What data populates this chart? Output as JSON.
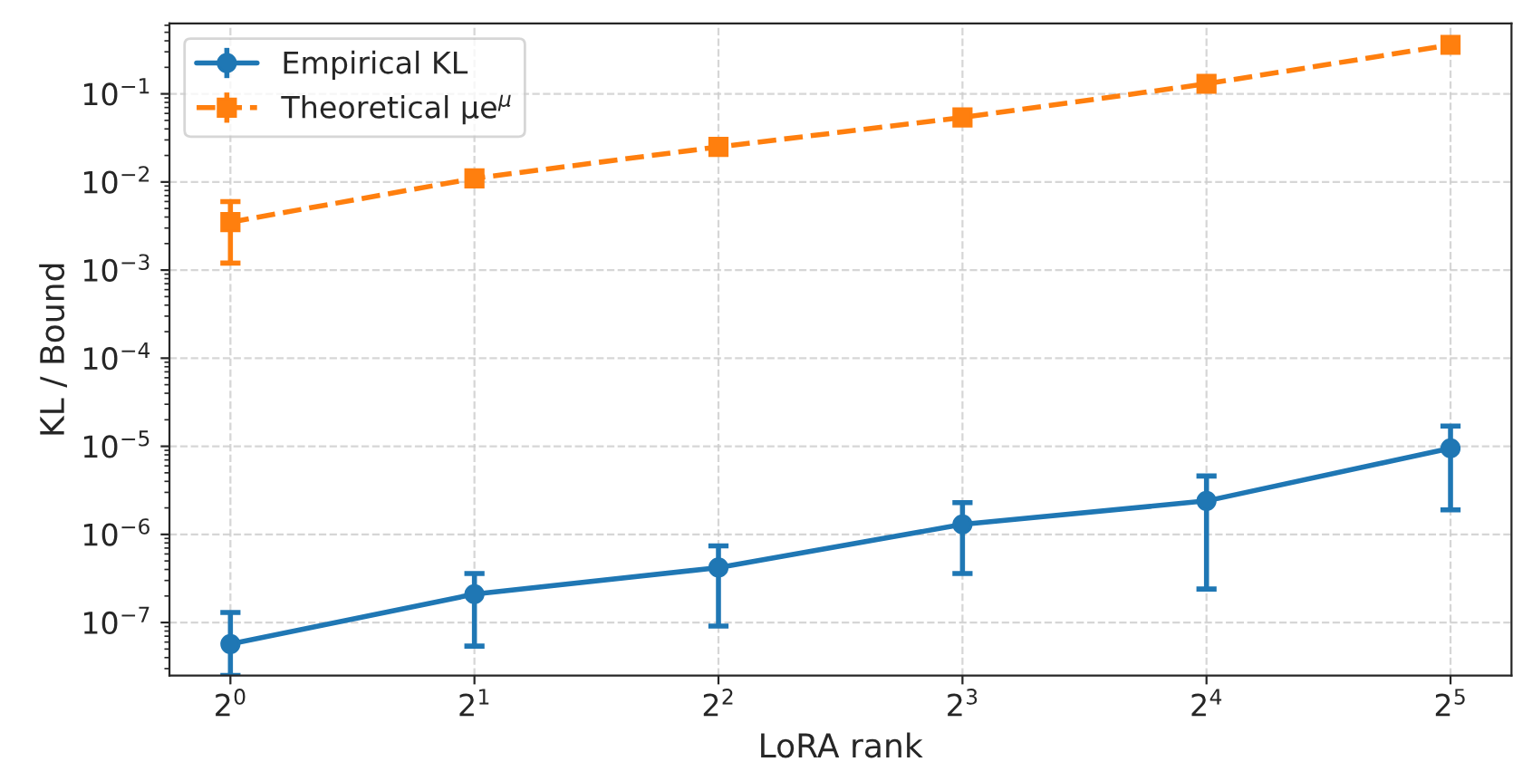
{
  "chart_data": {
    "type": "line",
    "xlabel": "LoRA rank",
    "ylabel": "KL / Bound",
    "log": "xy",
    "grid": true,
    "legend": "top left",
    "x": [
      1,
      2,
      4,
      8,
      16,
      32
    ],
    "xlim": [
      0.841,
      38.05
    ],
    "xticks": [
      {
        "value": 1,
        "label": "2$^{0}$"
      },
      {
        "value": 2,
        "label": "2$^{1}$"
      },
      {
        "value": 4,
        "label": "2$^{2}$"
      },
      {
        "value": 8,
        "label": "2$^{3}$"
      },
      {
        "value": 16,
        "label": "2$^{4}$"
      },
      {
        "value": 32,
        "label": "2$^{5}$"
      }
    ],
    "ylim": [
      2.5e-08,
      0.63
    ],
    "yticks": [
      {
        "value": 1e-07,
        "label": "10$^{−7}$"
      },
      {
        "value": 1e-06,
        "label": "10$^{−6}$"
      },
      {
        "value": 1e-05,
        "label": "10$^{−5}$"
      },
      {
        "value": 0.0001,
        "label": "10$^{−4}$"
      },
      {
        "value": 0.001,
        "label": "10$^{−3}$"
      },
      {
        "value": 0.01,
        "label": "10$^{−2}$"
      },
      {
        "value": 0.1,
        "label": "10$^{−1}$"
      }
    ],
    "series": [
      {
        "name": "Empirical KL",
        "color": "#1f77b4",
        "marker": "circle",
        "line_style": "solid",
        "values": [
          5.7e-08,
          2.1e-07,
          4.2e-07,
          1.3e-06,
          2.4e-06,
          9.5e-06
        ],
        "errors": [
          [
            2.5e-08,
            1.3e-07
          ],
          [
            5.4e-08,
            3.6e-07
          ],
          [
            9.1e-08,
            7.4e-07
          ],
          [
            3.6e-07,
            2.3e-06
          ],
          [
            2.4e-07,
            4.6e-06
          ],
          [
            1.9e-06,
            1.7e-05
          ]
        ]
      },
      {
        "name": "Theoretical μe$^{μ}$",
        "color": "#ff7f0e",
        "marker": "square",
        "line_style": "dashed",
        "values": [
          0.0035,
          0.011,
          0.025,
          0.054,
          0.13,
          0.36
        ],
        "errors": [
          [
            0.0012,
            0.006
          ],
          null,
          null,
          null,
          null,
          null
        ]
      }
    ]
  }
}
